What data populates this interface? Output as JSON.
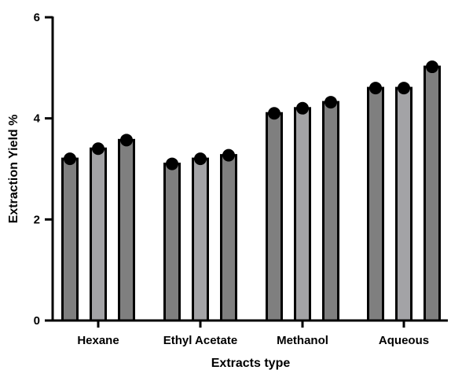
{
  "chart_data": {
    "type": "bar",
    "xlabel": "Extracts type",
    "ylabel": "Extraction Yield %",
    "ylim": [
      0,
      6
    ],
    "yticks": [
      0,
      2,
      4,
      6
    ],
    "ytick_labels": [
      "0",
      "2",
      "4",
      "6"
    ],
    "categories": [
      "Hexane",
      "Ethyl Acetate",
      "Methanol",
      "Aqueous"
    ],
    "replicates_per_category": 3,
    "values": [
      [
        3.2,
        3.4,
        3.57
      ],
      [
        3.1,
        3.2,
        3.27
      ],
      [
        4.1,
        4.2,
        4.32
      ],
      [
        4.6,
        4.6,
        5.02
      ]
    ],
    "bar_colors": [
      "#7f7f7f",
      "#a3a3a6",
      "#7f7f7f"
    ],
    "grid": false,
    "legend": "none"
  }
}
